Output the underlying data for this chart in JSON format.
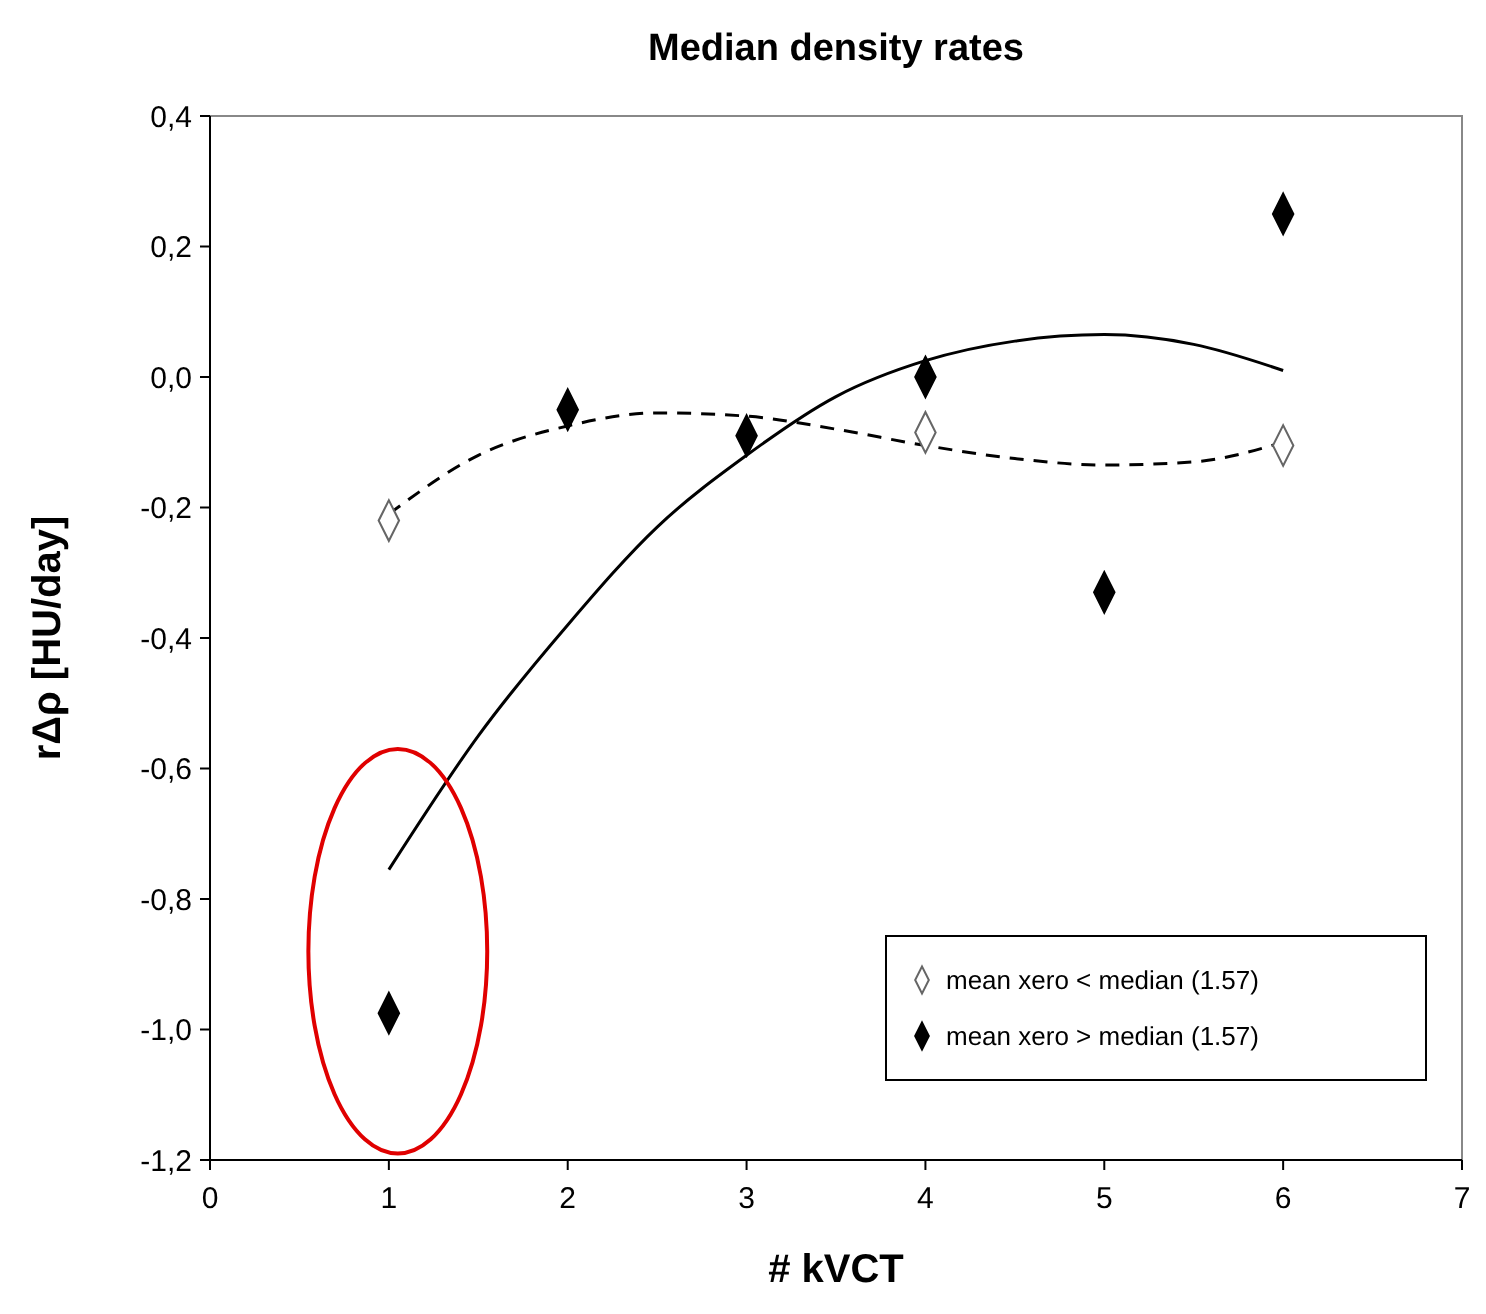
{
  "chart_data": {
    "type": "scatter",
    "title": "Median density rates",
    "xlabel": "# kVCT",
    "ylabel": "rΔρ [HU/day]",
    "xlim": [
      0,
      7
    ],
    "xticks": [
      0,
      1,
      2,
      3,
      4,
      5,
      6,
      7
    ],
    "ylim": [
      -1.2,
      0.4
    ],
    "yticks": [
      {
        "value": -1.2,
        "label": "-1,2"
      },
      {
        "value": -1.0,
        "label": "-1,0"
      },
      {
        "value": -0.8,
        "label": "-0,8"
      },
      {
        "value": -0.6,
        "label": "-0,6"
      },
      {
        "value": -0.4,
        "label": "-0,4"
      },
      {
        "value": -0.2,
        "label": "-0,2"
      },
      {
        "value": 0.0,
        "label": "0,0"
      },
      {
        "value": 0.2,
        "label": "0,2"
      },
      {
        "value": 0.4,
        "label": "0,4"
      }
    ],
    "grid": false,
    "legend": "bottom right",
    "marker": "diamond",
    "series": [
      {
        "name": "mean xero < median (1.57)",
        "color": "#ffffff",
        "x": [
          1,
          4,
          6
        ],
        "values": [
          -0.22,
          -0.085,
          -0.105
        ]
      },
      {
        "name": "mean xero > median (1.57)",
        "color": "#000000",
        "x": [
          1,
          2,
          3,
          4,
          5,
          6
        ],
        "values": [
          -0.975,
          -0.05,
          -0.09,
          0.0,
          -0.33,
          0.25
        ]
      },
      {
        "type": "line",
        "color": "#000000",
        "marker": "none",
        "line_style": "dashed",
        "x": [
          1,
          1.5,
          2,
          2.5,
          3,
          3.5,
          4,
          4.5,
          5,
          5.5,
          6
        ],
        "values": [
          -0.21,
          -0.12,
          -0.075,
          -0.055,
          -0.06,
          -0.08,
          -0.105,
          -0.125,
          -0.135,
          -0.13,
          -0.1
        ]
      },
      {
        "type": "line",
        "color": "#000000",
        "marker": "none",
        "line_style": "solid",
        "x": [
          1,
          1.5,
          2,
          2.5,
          3,
          3.5,
          4,
          4.5,
          5,
          5.5,
          6
        ],
        "values": [
          -0.755,
          -0.55,
          -0.38,
          -0.23,
          -0.12,
          -0.03,
          0.025,
          0.055,
          0.065,
          0.05,
          0.01
        ]
      }
    ]
  }
}
